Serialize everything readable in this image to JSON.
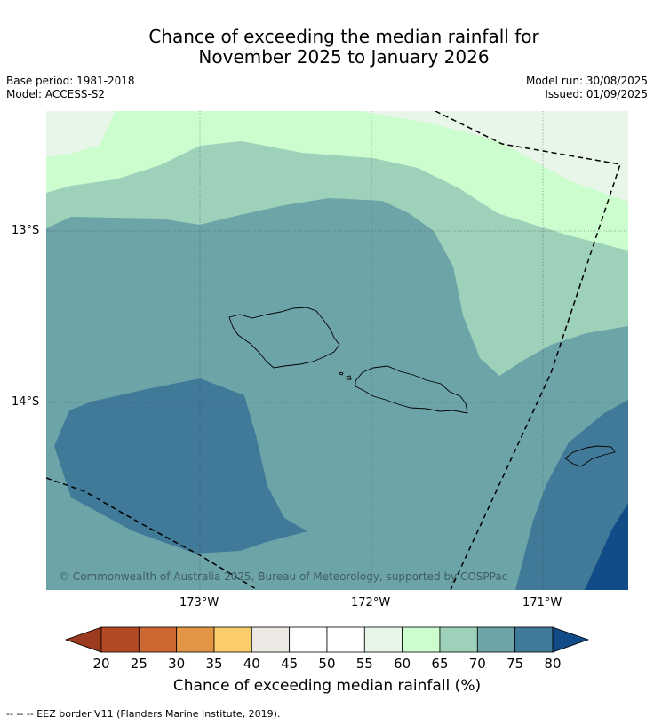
{
  "title_line1": "Chance of exceeding the median rainfall for",
  "title_line2": "November 2025 to January 2026",
  "base_period": "Base period: 1981-2018",
  "model": "Model: ACCESS-S2",
  "model_run": "Model run: 30/08/2025",
  "issued": "Issued: 01/09/2025",
  "credit": "© Commonwealth of Australia 2025, Bureau of Meteorology, supported by COSPPac",
  "lat_labels": [
    "13°S",
    "14°S"
  ],
  "lon_labels": [
    "173°W",
    "172°W",
    "171°W"
  ],
  "colorbar": {
    "title": "Chance of exceeding median rainfall (%)",
    "ticks": [
      "20",
      "25",
      "30",
      "35",
      "40",
      "45",
      "50",
      "55",
      "60",
      "65",
      "70",
      "75",
      "80"
    ],
    "colors": [
      "#9c3a1f",
      "#b34a25",
      "#cd6833",
      "#e19545",
      "#fbcd6a",
      "#ece8e4",
      "#ffffff",
      "#ffffff",
      "#e8f6e9",
      "#ccfdcf",
      "#9dd1b9",
      "#6da4a8",
      "#417a99",
      "#124c88"
    ]
  },
  "footer": "--  --  -- EEZ border V11 (Flanders Marine Institute, 2019)."
}
